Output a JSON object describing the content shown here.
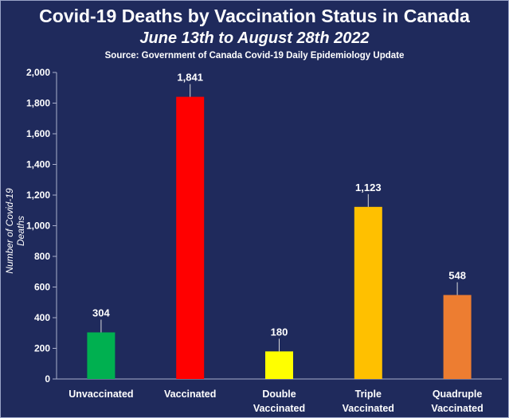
{
  "chart_data": {
    "type": "bar",
    "title": "Covid-19 Deaths by Vaccination Status in Canada",
    "subtitle": "June 13th to August 28th 2022",
    "source": "Source: Government of Canada  Covid-19 Daily Epidemiology Update",
    "ylabel": "Number of Covid-19 Deaths",
    "xlabel": "",
    "ylim": [
      0,
      2000
    ],
    "ytick_step": 200,
    "ytick_labels": [
      "0",
      "200",
      "400",
      "600",
      "800",
      "1,000",
      "1,200",
      "1,400",
      "1,600",
      "1,800",
      "2,000"
    ],
    "categories": [
      [
        "Unvaccinated"
      ],
      [
        "Vaccinated"
      ],
      [
        "Double",
        "Vaccinated"
      ],
      [
        "Triple",
        "Vaccinated"
      ],
      [
        "Quadruple",
        "Vaccinated"
      ]
    ],
    "values": [
      304,
      1841,
      180,
      1123,
      548
    ],
    "value_labels": [
      "304",
      "1,841",
      "180",
      "1,123",
      "548"
    ],
    "colors": [
      "#00b050",
      "#ff0000",
      "#ffff00",
      "#ffc000",
      "#ed7d31"
    ],
    "grid": false,
    "legend": "none"
  }
}
